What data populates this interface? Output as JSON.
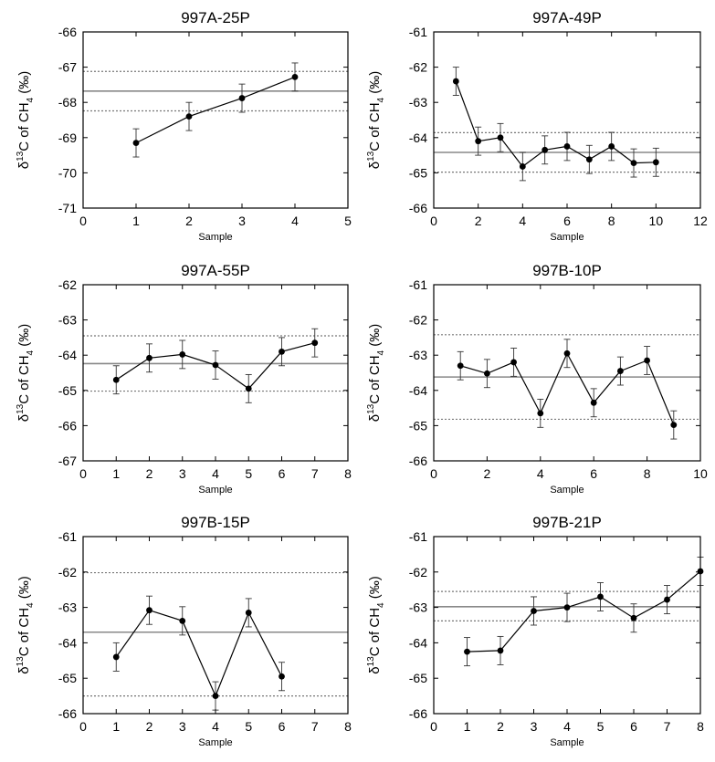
{
  "ylabel_parts": {
    "delta": "δ",
    "sup": "13",
    "mid": "C of CH",
    "sub": "4",
    "end": " (‰)"
  },
  "colors": {
    "data": "#000000",
    "mean": "#888888",
    "bound": "#777777"
  },
  "chart_data": [
    {
      "type": "line",
      "title": "997A-25P",
      "xlabel": "Sample",
      "xlim": [
        0,
        5
      ],
      "xticks": [
        0,
        1,
        2,
        3,
        4,
        5
      ],
      "ylim": [
        -71,
        -66
      ],
      "yticks": [
        -71,
        -70,
        -69,
        -68,
        -67,
        -66
      ],
      "x": [
        1,
        2,
        3,
        4
      ],
      "y": [
        -69.15,
        -68.4,
        -67.88,
        -67.28
      ],
      "err": 0.4,
      "mean": -67.68,
      "bounds": [
        -68.24,
        -67.12
      ]
    },
    {
      "type": "line",
      "title": "997A-49P",
      "xlabel": "Sample",
      "xlim": [
        0,
        12
      ],
      "xticks": [
        0,
        2,
        4,
        6,
        8,
        10,
        12
      ],
      "ylim": [
        -66,
        -61
      ],
      "yticks": [
        -66,
        -65,
        -64,
        -63,
        -62,
        -61
      ],
      "x": [
        1,
        2,
        3,
        4,
        5,
        6,
        7,
        8,
        9,
        10
      ],
      "y": [
        -62.4,
        -64.1,
        -64.0,
        -64.82,
        -64.35,
        -64.25,
        -64.62,
        -64.25,
        -64.72,
        -64.7
      ],
      "err": 0.4,
      "mean": -64.42,
      "bounds": [
        -64.98,
        -63.86
      ]
    },
    {
      "type": "line",
      "title": "997A-55P",
      "xlabel": "Sample",
      "xlim": [
        0,
        8
      ],
      "xticks": [
        0,
        1,
        2,
        3,
        4,
        5,
        6,
        7,
        8
      ],
      "ylim": [
        -67,
        -62
      ],
      "yticks": [
        -67,
        -66,
        -65,
        -64,
        -63,
        -62
      ],
      "x": [
        1,
        2,
        3,
        4,
        5,
        6,
        7
      ],
      "y": [
        -64.7,
        -64.08,
        -63.98,
        -64.28,
        -64.95,
        -63.9,
        -63.65
      ],
      "err": 0.4,
      "mean": -64.24,
      "bounds": [
        -65.02,
        -63.45
      ]
    },
    {
      "type": "line",
      "title": "997B-10P",
      "xlabel": "Sample",
      "xlim": [
        0,
        10
      ],
      "xticks": [
        0,
        2,
        4,
        6,
        8,
        10
      ],
      "ylim": [
        -66,
        -61
      ],
      "yticks": [
        -66,
        -65,
        -64,
        -63,
        -62,
        -61
      ],
      "x": [
        1,
        2,
        3,
        4,
        5,
        6,
        7,
        8,
        9
      ],
      "y": [
        -63.3,
        -63.52,
        -63.2,
        -64.65,
        -62.95,
        -64.35,
        -63.45,
        -63.15,
        -64.98
      ],
      "err": 0.4,
      "mean": -63.62,
      "bounds": [
        -64.82,
        -62.42
      ]
    },
    {
      "type": "line",
      "title": "997B-15P",
      "xlabel": "Sample",
      "xlim": [
        0,
        8
      ],
      "xticks": [
        0,
        1,
        2,
        3,
        4,
        5,
        6,
        7,
        8
      ],
      "ylim": [
        -66,
        -61
      ],
      "yticks": [
        -66,
        -65,
        -64,
        -63,
        -62,
        -61
      ],
      "x": [
        1,
        2,
        3,
        4,
        5,
        6
      ],
      "y": [
        -64.4,
        -63.08,
        -63.38,
        -65.5,
        -63.15,
        -64.95
      ],
      "err": 0.4,
      "mean": -63.7,
      "bounds": [
        -65.5,
        -62.02
      ]
    },
    {
      "type": "line",
      "title": "997B-21P",
      "xlabel": "Sample",
      "xlim": [
        0,
        8
      ],
      "xticks": [
        0,
        1,
        2,
        3,
        4,
        5,
        6,
        7,
        8
      ],
      "ylim": [
        -66,
        -61
      ],
      "yticks": [
        -66,
        -65,
        -64,
        -63,
        -62,
        -61
      ],
      "x": [
        1,
        2,
        3,
        4,
        5,
        6,
        7,
        8
      ],
      "y": [
        -64.25,
        -64.22,
        -63.1,
        -63.0,
        -62.7,
        -63.3,
        -62.78,
        -61.98
      ],
      "err": 0.4,
      "mean": -62.98,
      "bounds": [
        -63.38,
        -62.55
      ]
    }
  ]
}
